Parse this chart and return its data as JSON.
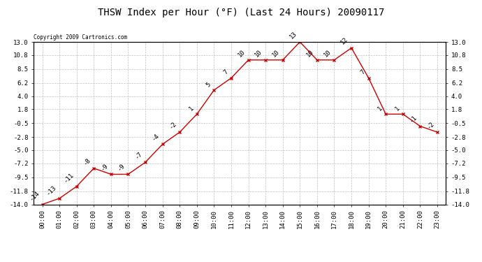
{
  "title": "THSW Index per Hour (°F) (Last 24 Hours) 20090117",
  "copyright": "Copyright 2009 Cartronics.com",
  "hours": [
    "00:00",
    "01:00",
    "02:00",
    "03:00",
    "04:00",
    "05:00",
    "06:00",
    "07:00",
    "08:00",
    "09:00",
    "10:00",
    "11:00",
    "12:00",
    "13:00",
    "14:00",
    "15:00",
    "16:00",
    "17:00",
    "18:00",
    "19:00",
    "20:00",
    "21:00",
    "22:00",
    "23:00"
  ],
  "values": [
    -14,
    -13,
    -11,
    -8,
    -9,
    -9,
    -7,
    -4,
    -2,
    1,
    5,
    7,
    10,
    10,
    10,
    13,
    10,
    10,
    12,
    7,
    1,
    1,
    -1,
    -2
  ],
  "yticks": [
    13.0,
    10.8,
    8.5,
    6.2,
    4.0,
    1.8,
    -0.5,
    -2.8,
    -5.0,
    -7.2,
    -9.5,
    -11.8,
    -14.0
  ],
  "ylim": [
    -14.0,
    13.0
  ],
  "line_color": "#cc0000",
  "marker": "x",
  "marker_color": "#cc0000",
  "bg_color": "#ffffff",
  "grid_color": "#c0c0c0",
  "title_color": "#000000",
  "label_color": "#000000",
  "title_fontsize": 10,
  "tick_fontsize": 6.5,
  "annotation_fontsize": 6.5
}
